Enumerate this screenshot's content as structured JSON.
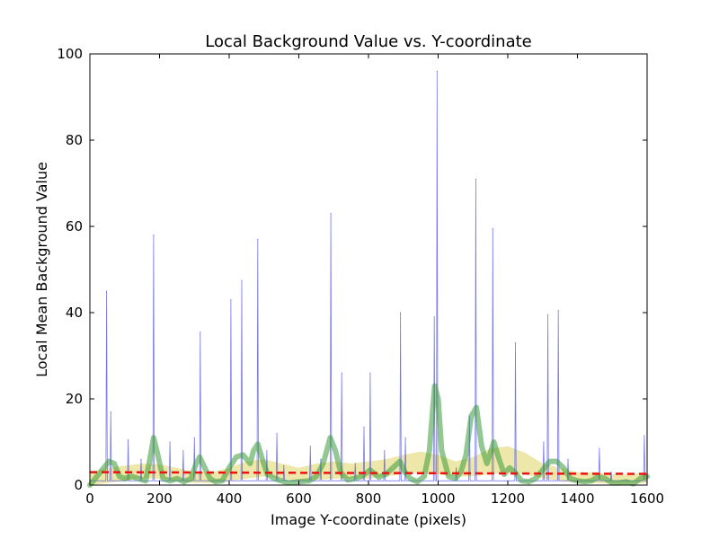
{
  "chart_data": {
    "type": "line",
    "title": "Local Background Value vs. Y-coordinate",
    "xlabel": "Image Y-coordinate (pixels)",
    "ylabel": "Local Mean Background Value",
    "xlim": [
      0,
      1600
    ],
    "ylim": [
      0,
      100
    ],
    "xticks": [
      0,
      200,
      400,
      600,
      800,
      1000,
      1200,
      1400,
      1600
    ],
    "yticks": [
      0,
      20,
      40,
      60,
      80,
      100
    ],
    "grid": false,
    "colors": {
      "raw": "#4a4ae8",
      "smoothed": "#3a9a3a",
      "trend_band": "#d8cc40",
      "mean_line": "#ee1111"
    },
    "series": [
      {
        "kind": "spikes",
        "baseline": 1.0,
        "points": [
          [
            48,
            45
          ],
          [
            60,
            17
          ],
          [
            110,
            10.5
          ],
          [
            147,
            6
          ],
          [
            183,
            58
          ],
          [
            230,
            10
          ],
          [
            268,
            8
          ],
          [
            300,
            11
          ],
          [
            317,
            35.5
          ],
          [
            405,
            43
          ],
          [
            436,
            47.5
          ],
          [
            482,
            57
          ],
          [
            508,
            8
          ],
          [
            537,
            12
          ],
          [
            557,
            4.5
          ],
          [
            633,
            9
          ],
          [
            663,
            6
          ],
          [
            692,
            63
          ],
          [
            723,
            26
          ],
          [
            762,
            5
          ],
          [
            787,
            13.5
          ],
          [
            805,
            26
          ],
          [
            846,
            8
          ],
          [
            892,
            40
          ],
          [
            906,
            11
          ],
          [
            989,
            39
          ],
          [
            997,
            96
          ],
          [
            1052,
            4
          ],
          [
            1090,
            16
          ],
          [
            1108,
            71
          ],
          [
            1157,
            59.5
          ],
          [
            1222,
            33
          ],
          [
            1303,
            10
          ],
          [
            1315,
            39.5
          ],
          [
            1345,
            40.5
          ],
          [
            1373,
            6
          ],
          [
            1463,
            8.5
          ],
          [
            1497,
            3
          ],
          [
            1592,
            11.5
          ]
        ]
      },
      {
        "kind": "smoothed",
        "x": [
          0,
          20,
          40,
          55,
          70,
          85,
          100,
          120,
          140,
          160,
          170,
          183,
          195,
          210,
          230,
          250,
          270,
          290,
          305,
          315,
          330,
          345,
          360,
          380,
          400,
          420,
          440,
          460,
          470,
          482,
          495,
          510,
          530,
          550,
          570,
          600,
          630,
          650,
          670,
          690,
          705,
          720,
          740,
          760,
          780,
          805,
          830,
          850,
          870,
          890,
          905,
          920,
          940,
          960,
          975,
          990,
          1000,
          1010,
          1030,
          1050,
          1065,
          1080,
          1095,
          1110,
          1125,
          1140,
          1160,
          1175,
          1190,
          1205,
          1220,
          1240,
          1260,
          1280,
          1300,
          1320,
          1340,
          1360,
          1380,
          1400,
          1420,
          1440,
          1460,
          1480,
          1500,
          1520,
          1540,
          1560,
          1580,
          1600
        ],
        "y": [
          0,
          2,
          4,
          5.5,
          5,
          2,
          1.5,
          2,
          1.5,
          1,
          5,
          11,
          7,
          1.5,
          1,
          1.5,
          0.8,
          1.5,
          5,
          6.5,
          4,
          1.5,
          0.8,
          1,
          4,
          6.5,
          7,
          5,
          8,
          9.5,
          6,
          2.5,
          1.5,
          1,
          0.5,
          0.8,
          1,
          2,
          5,
          11,
          8,
          3,
          1.2,
          1.5,
          2,
          3.5,
          1.8,
          2.5,
          4,
          5.5,
          3,
          1.5,
          0.8,
          2,
          8,
          23,
          20,
          8,
          2,
          1.5,
          3,
          7,
          16,
          18,
          9,
          5,
          10,
          6,
          2.5,
          4,
          3,
          1,
          0.8,
          1.5,
          3.5,
          5.5,
          5.5,
          4,
          1.5,
          1,
          0.8,
          1,
          2,
          1.5,
          0.5,
          0.5,
          0.8,
          0.3,
          1.5,
          2
        ]
      },
      {
        "kind": "trend_band",
        "x": [
          0,
          50,
          100,
          150,
          200,
          250,
          300,
          350,
          400,
          450,
          500,
          550,
          600,
          650,
          700,
          750,
          800,
          850,
          900,
          950,
          1000,
          1050,
          1100,
          1150,
          1200,
          1250,
          1300,
          1350,
          1400,
          1450,
          1500,
          1550,
          1600
        ],
        "upper": [
          3,
          4,
          4.5,
          5,
          4.8,
          4,
          3,
          3,
          4,
          5.5,
          6,
          5,
          4,
          5,
          5.5,
          5,
          5.5,
          6,
          7,
          7.8,
          7,
          5.5,
          6.5,
          8.5,
          9,
          7.5,
          5,
          4,
          3,
          3,
          2.5,
          2.5,
          3
        ],
        "lower": [
          0,
          0.5,
          1,
          1.5,
          1.5,
          1,
          0.5,
          0.5,
          1,
          1.5,
          2,
          1.5,
          1,
          1.2,
          1.5,
          1.5,
          1.5,
          2,
          2.5,
          3,
          2.5,
          2,
          2,
          2.5,
          3,
          2.5,
          1.5,
          1,
          0.5,
          0.5,
          0.3,
          0.3,
          0.5
        ]
      },
      {
        "kind": "mean_line",
        "x": [
          0,
          1600
        ],
        "y": [
          3.0,
          2.6
        ]
      }
    ]
  }
}
